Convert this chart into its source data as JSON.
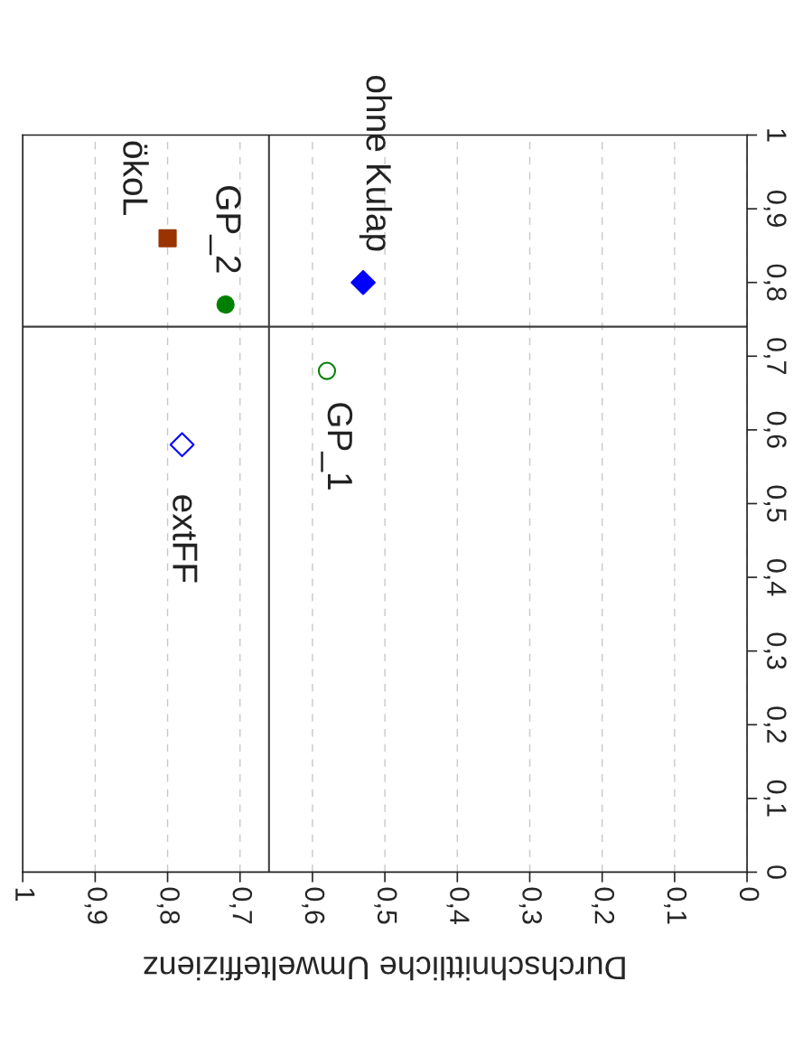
{
  "chart_data": {
    "type": "scatter",
    "xlabel": "Durchschnittliche Umwelteffizienz",
    "xlim": [
      1,
      0
    ],
    "ylim": [
      0,
      1
    ],
    "xticks": [
      {
        "value": 1,
        "label": "1"
      },
      {
        "value": 0.9,
        "label": "0,9"
      },
      {
        "value": 0.8,
        "label": "0,8"
      },
      {
        "value": 0.7,
        "label": "0,7"
      },
      {
        "value": 0.6,
        "label": "0,6"
      },
      {
        "value": 0.5,
        "label": "0,5"
      },
      {
        "value": 0.4,
        "label": "0,4"
      },
      {
        "value": 0.3,
        "label": "0,3"
      },
      {
        "value": 0.2,
        "label": "0,2"
      },
      {
        "value": 0.1,
        "label": "0,1"
      },
      {
        "value": 0,
        "label": "0"
      }
    ],
    "yticks": [
      {
        "value": 0,
        "label": "0"
      },
      {
        "value": 0.1,
        "label": "0,1"
      },
      {
        "value": 0.2,
        "label": "0,2"
      },
      {
        "value": 0.3,
        "label": "0,3"
      },
      {
        "value": 0.4,
        "label": "0,4"
      },
      {
        "value": 0.5,
        "label": "0,5"
      },
      {
        "value": 0.6,
        "label": "0,6"
      },
      {
        "value": 0.7,
        "label": "0,7"
      },
      {
        "value": 0.8,
        "label": "0,8"
      },
      {
        "value": 0.9,
        "label": "0,9"
      },
      {
        "value": 1,
        "label": "1"
      }
    ],
    "grid": "x",
    "series": [
      {
        "name": "ökoL",
        "color": "#993300",
        "marker": "square",
        "x": [
          0.8
        ],
        "values": [
          0.86
        ]
      },
      {
        "name": "GP_2",
        "color": "#008000",
        "marker": "circle",
        "x": [
          0.72
        ],
        "values": [
          0.77
        ]
      },
      {
        "name": "ohne Kulap",
        "color": "#0000ff",
        "marker": "diamond",
        "x": [
          0.53
        ],
        "values": [
          0.8
        ]
      },
      {
        "name": "GP_1",
        "color": "#008000",
        "marker": "circle-open",
        "x": [
          0.58
        ],
        "values": [
          0.68
        ]
      },
      {
        "name": "extFF",
        "color": "#0000ff",
        "marker": "diamond-open",
        "x": [
          0.78
        ],
        "values": [
          0.58
        ]
      }
    ],
    "ref_lines": [
      {
        "axis": "x",
        "value": 0.66,
        "color": "#404040"
      },
      {
        "axis": "y",
        "value": 0.74,
        "color": "#404040"
      }
    ]
  }
}
